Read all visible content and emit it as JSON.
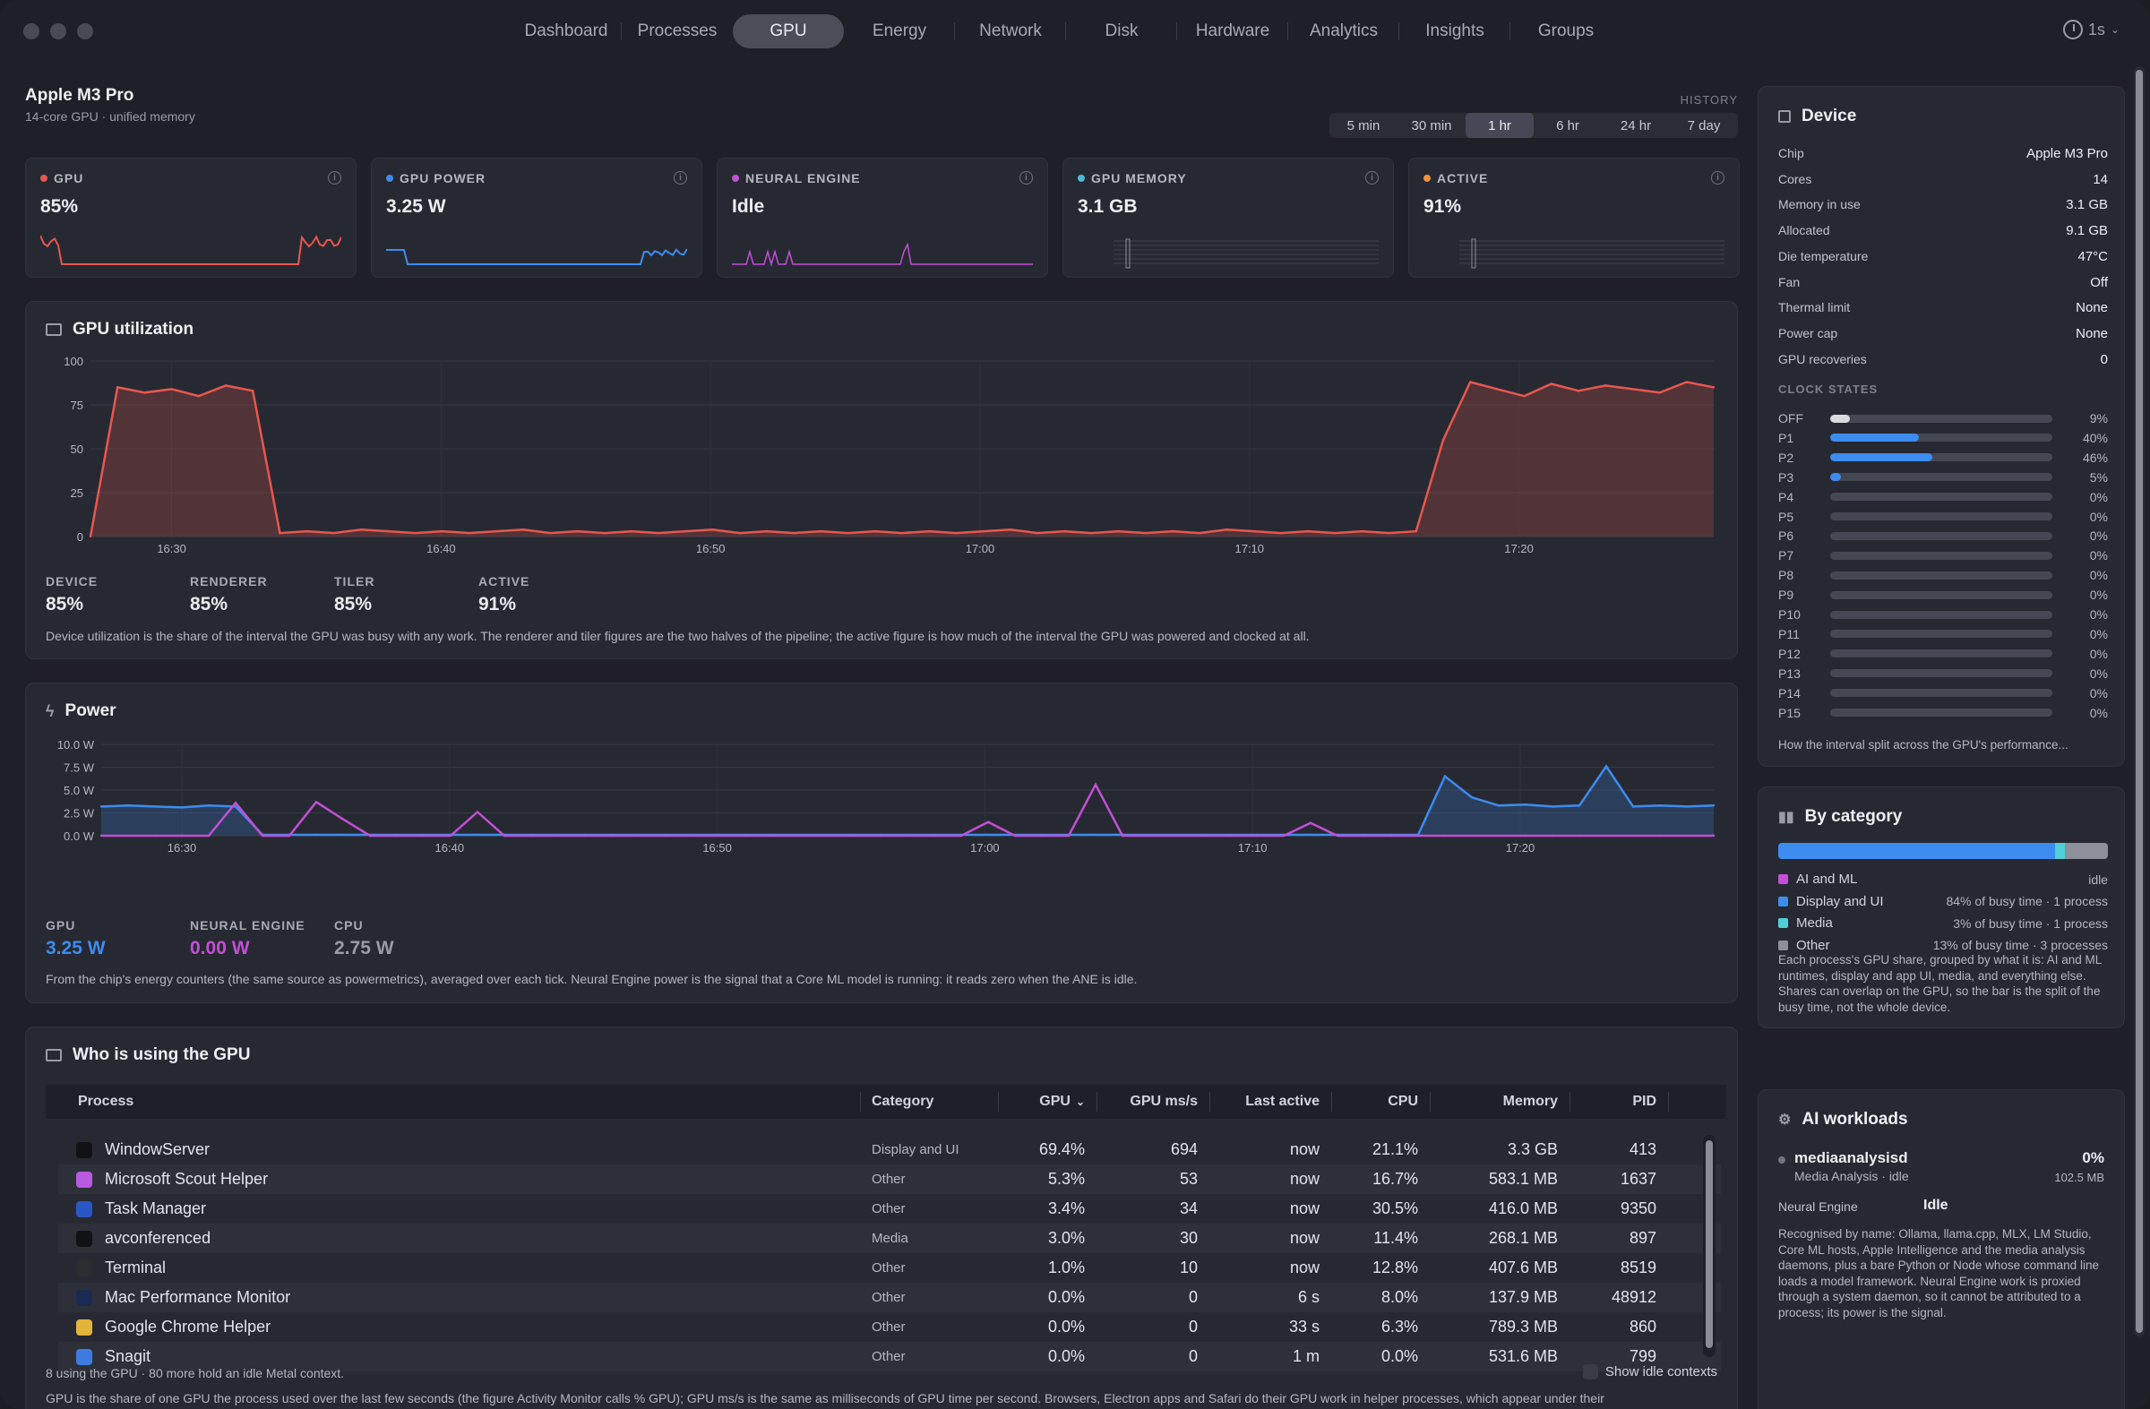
{
  "window": {
    "tabs": [
      {
        "label": "Dashboard"
      },
      {
        "label": "Processes"
      },
      {
        "label": "GPU"
      },
      {
        "label": "Energy"
      },
      {
        "label": "Network"
      },
      {
        "label": "Disk"
      },
      {
        "label": "Hardware"
      },
      {
        "label": "Analytics"
      },
      {
        "label": "Insights"
      },
      {
        "label": "Groups"
      }
    ],
    "active_tab": "GPU",
    "interval": "1s"
  },
  "header": {
    "chip": "Apple M3 Pro",
    "subtitle": "14-core GPU · unified memory",
    "history_label": "HISTORY",
    "ranges": [
      "5 min",
      "30 min",
      "1 hr",
      "6 hr",
      "24 hr",
      "7 day"
    ],
    "active_range": "1 hr"
  },
  "stats": [
    {
      "label": "GPU",
      "value": "85%",
      "color": "#e8574e"
    },
    {
      "label": "GPU POWER",
      "value": "3.25 W",
      "color": "#3d8cf0"
    },
    {
      "label": "NEURAL ENGINE",
      "value": "Idle",
      "color": "#c24fd6"
    },
    {
      "label": "GPU MEMORY",
      "value": "3.1 GB",
      "color": "#4fb8d6"
    },
    {
      "label": "ACTIVE",
      "value": "91%",
      "color": "#f0913d"
    }
  ],
  "utilization": {
    "title": "GPU utilization",
    "figures": [
      {
        "label": "DEVICE",
        "value": "85%"
      },
      {
        "label": "RENDERER",
        "value": "85%"
      },
      {
        "label": "TILER",
        "value": "85%"
      },
      {
        "label": "ACTIVE",
        "value": "91%"
      }
    ],
    "note": "Device utilization is the share of the interval the GPU was busy with any work. The renderer and tiler figures are the two halves of the pipeline; the active figure is how much of the interval the GPU was powered and clocked at all."
  },
  "power": {
    "title": "Power",
    "figures": [
      {
        "label": "GPU",
        "value": "3.25 W",
        "color": "#3d8cf0"
      },
      {
        "label": "NEURAL ENGINE",
        "value": "0.00 W",
        "color": "#c24fd6"
      },
      {
        "label": "CPU",
        "value": "2.75 W",
        "color": "#9a9ca5"
      }
    ],
    "note": "From the chip's energy counters (the same source as powermetrics), averaged over each tick. Neural Engine power is the signal that a Core ML model is running: it reads zero when the ANE is idle."
  },
  "chart_data": [
    {
      "type": "area",
      "title": "GPU utilization",
      "x_ticks": [
        "16:30",
        "16:40",
        "16:50",
        "17:00",
        "17:10",
        "17:20"
      ],
      "y_ticks": [
        "100",
        "75",
        "50",
        "25",
        "0"
      ],
      "ylim": [
        0,
        100
      ],
      "series": [
        {
          "values": [
            0,
            85,
            82,
            84,
            80,
            86,
            83,
            2,
            3,
            2,
            4,
            3,
            2,
            3,
            2,
            3,
            4,
            2,
            3,
            2,
            3,
            2,
            3,
            4,
            2,
            3,
            2,
            3,
            2,
            3,
            2,
            3,
            2,
            3,
            4,
            2,
            3,
            2,
            3,
            2,
            3,
            2,
            4,
            3,
            2,
            3,
            2,
            3,
            2,
            3,
            55,
            88,
            84,
            80,
            87,
            83,
            86,
            84,
            82,
            88,
            85
          ]
        }
      ]
    },
    {
      "type": "line",
      "title": "Power",
      "x_ticks": [
        "16:30",
        "16:40",
        "16:50",
        "17:00",
        "17:10",
        "17:20"
      ],
      "y_ticks": [
        "10.0 W",
        "7.5 W",
        "5.0 W",
        "2.5 W",
        "0.0 W"
      ],
      "ylim": [
        0,
        10
      ],
      "series": [
        {
          "name": "GPU",
          "values": [
            3.2,
            3.3,
            3.2,
            3.1,
            3.3,
            3.2,
            0.1,
            0.1,
            0.1,
            0.1,
            0.1,
            0.1,
            0.1,
            0.1,
            0.1,
            0.1,
            0.1,
            0.1,
            0.1,
            0.1,
            0.1,
            0.1,
            0.1,
            0.1,
            0.1,
            0.1,
            0.1,
            0.1,
            0.1,
            0.1,
            0.1,
            0.1,
            0.1,
            0.1,
            0.1,
            0.1,
            0.1,
            0.1,
            0.1,
            0.1,
            0.1,
            0.1,
            0.1,
            0.1,
            0.1,
            0.1,
            0.1,
            0.1,
            0.1,
            0.1,
            6.5,
            4.2,
            3.3,
            3.4,
            3.2,
            3.3,
            7.6,
            3.2,
            3.3,
            3.2,
            3.3
          ]
        },
        {
          "name": "NEURAL ENGINE",
          "values": [
            0,
            0,
            0,
            0,
            0,
            3.6,
            0,
            0,
            3.7,
            1.8,
            0,
            0,
            0,
            0,
            2.6,
            0,
            0,
            0,
            0,
            0,
            0,
            0,
            0,
            0,
            0,
            0,
            0,
            0,
            0,
            0,
            0,
            0,
            0,
            1.5,
            0,
            0,
            0,
            5.6,
            0,
            0,
            0,
            0,
            0,
            0,
            0,
            1.4,
            0,
            0,
            0,
            0,
            0,
            0,
            0,
            0,
            0,
            0,
            0,
            0,
            0,
            0,
            0
          ]
        }
      ]
    }
  ],
  "who": {
    "title": "Who is using the GPU",
    "columns": [
      "Process",
      "Category",
      "GPU",
      "GPU ms/s",
      "Last active",
      "CPU",
      "Memory",
      "PID"
    ],
    "rows": [
      {
        "name": "WindowServer",
        "category": "Display and UI",
        "gpu": "69.4%",
        "ms": "694",
        "last": "now",
        "cpu": "21.1%",
        "mem": "3.3 GB",
        "pid": "413",
        "icon": "#111214"
      },
      {
        "name": "Microsoft Scout Helper",
        "category": "Other",
        "gpu": "5.3%",
        "ms": "53",
        "last": "now",
        "cpu": "16.7%",
        "mem": "583.1 MB",
        "pid": "1637",
        "icon": "#b85adf"
      },
      {
        "name": "Task Manager",
        "category": "Other",
        "gpu": "3.4%",
        "ms": "34",
        "last": "now",
        "cpu": "30.5%",
        "mem": "416.0 MB",
        "pid": "9350",
        "icon": "#2a56c6"
      },
      {
        "name": "avconferenced",
        "category": "Media",
        "gpu": "3.0%",
        "ms": "30",
        "last": "now",
        "cpu": "11.4%",
        "mem": "268.1 MB",
        "pid": "897",
        "icon": "#111214"
      },
      {
        "name": "Terminal",
        "category": "Other",
        "gpu": "1.0%",
        "ms": "10",
        "last": "now",
        "cpu": "12.8%",
        "mem": "407.6 MB",
        "pid": "8519",
        "icon": "#2c2d31"
      },
      {
        "name": "Mac Performance Monitor",
        "category": "Other",
        "gpu": "0.0%",
        "ms": "0",
        "last": "6 s",
        "cpu": "8.0%",
        "mem": "137.9 MB",
        "pid": "48912",
        "icon": "#1b2a52"
      },
      {
        "name": "Google Chrome Helper",
        "category": "Other",
        "gpu": "0.0%",
        "ms": "0",
        "last": "33 s",
        "cpu": "6.3%",
        "mem": "789.3 MB",
        "pid": "860",
        "icon": "#e2b53a"
      },
      {
        "name": "Snagit",
        "category": "Other",
        "gpu": "0.0%",
        "ms": "0",
        "last": "1 m",
        "cpu": "0.0%",
        "mem": "531.6 MB",
        "pid": "799",
        "icon": "#3d7be0"
      }
    ],
    "footer": "8 using the GPU · 80 more hold an idle Metal context.",
    "toggle": "Show idle contexts",
    "bottom_note": "GPU is the share of one GPU the process used over the last few seconds (the figure Activity Monitor calls % GPU); GPU ms/s is the same as milliseconds of GPU time per second. Browsers, Electron apps and Safari do their GPU work in helper processes, which appear under their"
  },
  "device": {
    "title": "Device",
    "rows": [
      {
        "k": "Chip",
        "v": "Apple M3 Pro"
      },
      {
        "k": "Cores",
        "v": "14"
      },
      {
        "k": "Memory in use",
        "v": "3.1 GB"
      },
      {
        "k": "Allocated",
        "v": "9.1 GB"
      },
      {
        "k": "Die temperature",
        "v": "47°C"
      },
      {
        "k": "Fan",
        "v": "Off"
      },
      {
        "k": "Thermal limit",
        "v": "None"
      },
      {
        "k": "Power cap",
        "v": "None"
      },
      {
        "k": "GPU recoveries",
        "v": "0"
      }
    ],
    "clock_title": "CLOCK STATES",
    "clock": [
      {
        "n": "OFF",
        "p": "9%",
        "f": 0.09,
        "c": "#d9dbe1"
      },
      {
        "n": "P1",
        "p": "40%",
        "f": 0.4,
        "c": "#3d8cf0"
      },
      {
        "n": "P2",
        "p": "46%",
        "f": 0.46,
        "c": "#3d8cf0"
      },
      {
        "n": "P3",
        "p": "5%",
        "f": 0.05,
        "c": "#3d8cf0"
      },
      {
        "n": "P4",
        "p": "0%",
        "f": 0
      },
      {
        "n": "P5",
        "p": "0%",
        "f": 0
      },
      {
        "n": "P6",
        "p": "0%",
        "f": 0
      },
      {
        "n": "P7",
        "p": "0%",
        "f": 0
      },
      {
        "n": "P8",
        "p": "0%",
        "f": 0
      },
      {
        "n": "P9",
        "p": "0%",
        "f": 0
      },
      {
        "n": "P10",
        "p": "0%",
        "f": 0
      },
      {
        "n": "P11",
        "p": "0%",
        "f": 0
      },
      {
        "n": "P12",
        "p": "0%",
        "f": 0
      },
      {
        "n": "P13",
        "p": "0%",
        "f": 0
      },
      {
        "n": "P14",
        "p": "0%",
        "f": 0
      },
      {
        "n": "P15",
        "p": "0%",
        "f": 0
      }
    ],
    "note": "How the interval split across the GPU's performance..."
  },
  "category": {
    "title": "By category",
    "bar": [
      {
        "f": 0.84,
        "c": "#3d8cf0"
      },
      {
        "f": 0.03,
        "c": "#4fd0d6"
      },
      {
        "f": 0.13,
        "c": "#8e9099"
      }
    ],
    "items": [
      {
        "name": "AI and ML",
        "desc": "idle",
        "c": "#c24fd6"
      },
      {
        "name": "Display and UI",
        "desc": "84% of busy time · 1 process",
        "c": "#3d8cf0"
      },
      {
        "name": "Media",
        "desc": "3% of busy time · 1 process",
        "c": "#4fd0d6"
      },
      {
        "name": "Other",
        "desc": "13% of busy time · 3 processes",
        "c": "#8e9099"
      }
    ],
    "note": "Each process's GPU share, grouped by what it is: AI and ML runtimes, display and app UI, media, and everything else. Shares can overlap on the GPU, so the bar is the split of the busy time, not the whole device."
  },
  "ai": {
    "title": "AI workloads",
    "proc": "mediaanalysisd",
    "proc_sub": "Media Analysis · idle",
    "pct": "0%",
    "mem": "102.5 MB",
    "ne_label": "Neural Engine",
    "ne_value": "Idle",
    "note": "Recognised by name: Ollama, llama.cpp, MLX, LM Studio, Core ML hosts, Apple Intelligence and the media analysis daemons, plus a bare Python or Node whose command line loads a model framework. Neural Engine work is proxied through a system daemon, so it cannot be attributed to a process; its power is the signal."
  }
}
